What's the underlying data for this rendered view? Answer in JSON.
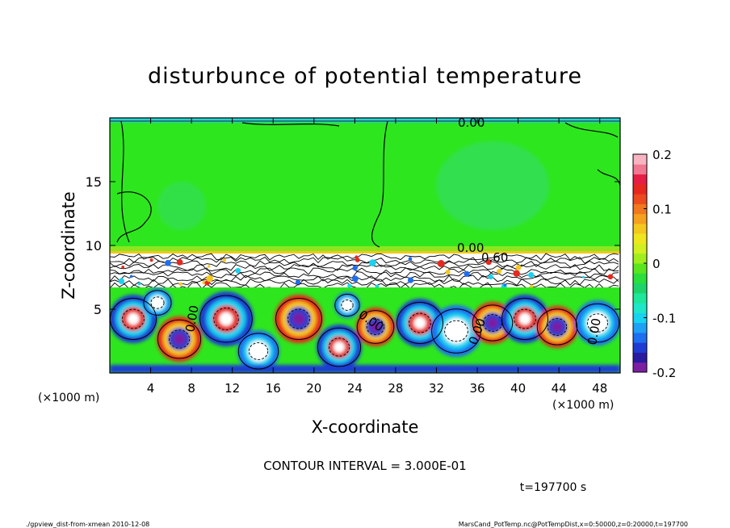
{
  "chart_data": {
    "type": "heatmap",
    "title": "disturbunce of potential temperature",
    "xlabel": "X-coordinate",
    "ylabel": "Z-coordinate",
    "x_unit_left": "(×1000 m)",
    "x_unit_right": "(×1000 m)",
    "xlim": [
      0,
      50
    ],
    "ylim": [
      0,
      20
    ],
    "x_ticks": [
      "4",
      "8",
      "12",
      "16",
      "20",
      "24",
      "28",
      "32",
      "36",
      "40",
      "44",
      "48"
    ],
    "x_tick_values": [
      4,
      8,
      12,
      16,
      20,
      24,
      28,
      32,
      36,
      40,
      44,
      48
    ],
    "y_ticks": [
      "5",
      "10",
      "15"
    ],
    "y_tick_values": [
      5,
      10,
      15
    ],
    "colorbar": {
      "range": [
        -0.2,
        0.2
      ],
      "ticks": [
        "0.2",
        "0.1",
        "0",
        "-0.1",
        "-0.2"
      ],
      "tick_values": [
        0.2,
        0.1,
        0,
        -0.1,
        -0.2
      ],
      "colors": [
        "#7b1fa2",
        "#2a1aa0",
        "#1e3cd2",
        "#1e6ef0",
        "#1ea0f5",
        "#18d2f0",
        "#1ee6c8",
        "#1ee69a",
        "#1ed46a",
        "#2ade3c",
        "#5ae61e",
        "#a0ee1e",
        "#d2f020",
        "#f0e61e",
        "#f5c81e",
        "#f5a01e",
        "#f0781e",
        "#eb4b1e",
        "#e6281e",
        "#e61e46",
        "#f07890",
        "#f8b4c0"
      ]
    },
    "contour_labels": [
      "0.00",
      "0.00",
      "0.60",
      "0.00",
      "0.00",
      "0.00",
      "0.00"
    ],
    "contour_interval_text": "CONTOUR INTERVAL = 3.000E-01",
    "time_text": "t=197700 s"
  },
  "footer": {
    "left": "./gpview_dist-from-xmean  2010-12-08",
    "right": "MarsCand_PotTemp.nc@PotTempDist,x=0:50000,z=0:20000,t=197700"
  },
  "colors": {
    "green_background": "#2ee61e",
    "boundary_white": "#ffffff",
    "vortex_red": "#e6281e",
    "vortex_blue": "#1e3cd2"
  }
}
